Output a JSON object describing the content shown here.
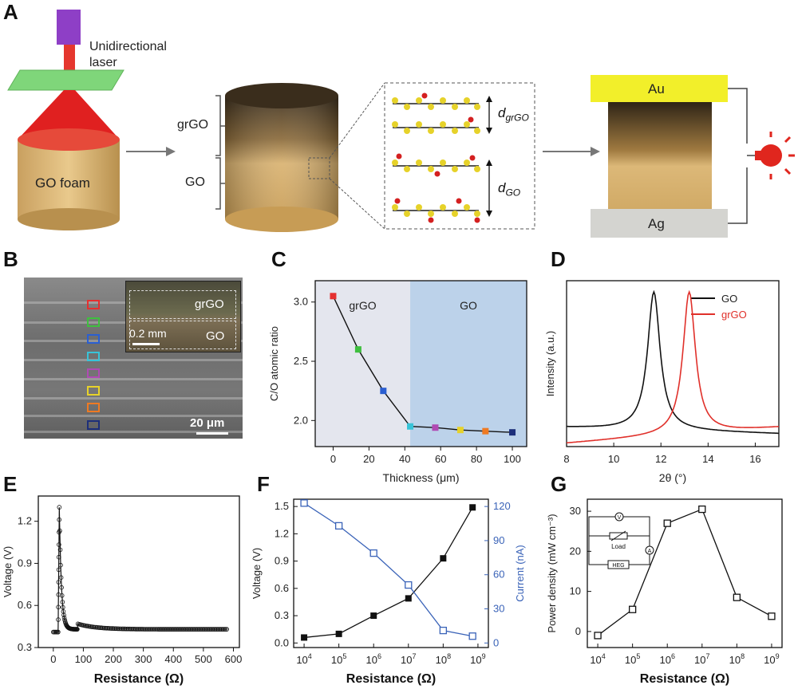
{
  "panel_labels": {
    "a": "A",
    "b": "B",
    "c": "C",
    "d": "D",
    "e": "E",
    "f": "F",
    "g": "G"
  },
  "panel_a": {
    "laser_label_1": "Unidirectional",
    "laser_label_2": "laser",
    "foam_label": "GO foam",
    "grgo_label": "grGO",
    "go_label": "GO",
    "d_grgo_main": "d",
    "d_grgo_sub": "grGO",
    "d_go_main": "d",
    "d_go_sub": "GO",
    "au_label": "Au",
    "ag_label": "Ag"
  },
  "panel_b": {
    "inset_grgo": "grGO",
    "inset_go": "GO",
    "inset_scale": "0.2 mm",
    "scale_bar": "20 μm",
    "marker_colors": [
      "#e53030",
      "#3fbf3f",
      "#2b5fd1",
      "#38c3d8",
      "#b04ab4",
      "#e7d22a",
      "#ef7a22",
      "#1d2f7a"
    ]
  },
  "chart_data": [
    {
      "id": "C",
      "type": "line",
      "xlabel": "Thickness (μm)",
      "ylabel": "C/O atomic ratio",
      "xlim": [
        -10,
        108
      ],
      "ylim": [
        1.78,
        3.18
      ],
      "xticks": [
        0,
        20,
        40,
        60,
        80,
        100
      ],
      "yticks": [
        2.0,
        2.5,
        3.0
      ],
      "ytick_labels": [
        "2.0",
        "2.5",
        "3.0"
      ],
      "region_labels": [
        "grGO",
        "GO"
      ],
      "region_boundary": 43,
      "x": [
        0,
        14,
        28,
        43,
        57,
        71,
        85,
        100
      ],
      "values": [
        3.05,
        2.6,
        2.25,
        1.95,
        1.94,
        1.92,
        1.91,
        1.9
      ],
      "point_colors": [
        "#e53030",
        "#3fbf3f",
        "#2b5fd1",
        "#38c3d8",
        "#b04ab4",
        "#e7d22a",
        "#ef7a22",
        "#1d2f7a"
      ]
    },
    {
      "id": "D",
      "type": "line",
      "xlabel": "2θ (°)",
      "ylabel": "Intensity (a.u.)",
      "xlim": [
        8,
        17
      ],
      "xticks": [
        8,
        10,
        12,
        14,
        16
      ],
      "series": [
        {
          "name": "GO",
          "color": "#111111",
          "peak": 11.7
        },
        {
          "name": "grGO",
          "color": "#e0302a",
          "peak": 13.2
        }
      ]
    },
    {
      "id": "E",
      "type": "scatter",
      "xlabel": "Resistance (Ω)",
      "ylabel": "Voltage (V)",
      "xlim": [
        -50,
        620
      ],
      "ylim": [
        0.3,
        1.38
      ],
      "xticks": [
        0,
        100,
        200,
        300,
        400,
        500,
        600
      ],
      "yticks": [
        0.3,
        0.6,
        0.9,
        1.2
      ],
      "peak": {
        "x": 20,
        "y": 1.3
      },
      "baseline": 0.43,
      "start": {
        "x": 0,
        "y": 0.41
      }
    },
    {
      "id": "F",
      "type": "line",
      "xlabel": "Resistance (Ω)",
      "ylabel": "Voltage (V)",
      "y2label": "Current (nA)",
      "log_x": true,
      "xlim_exp": [
        3.7,
        9.3
      ],
      "xtick_exps": [
        4,
        5,
        6,
        7,
        8,
        9
      ],
      "xtick_base": "10",
      "ylim": [
        -0.05,
        1.58
      ],
      "yticks": [
        0.0,
        0.3,
        0.6,
        0.9,
        1.2,
        1.5
      ],
      "ytick_labels": [
        "0.0",
        "0.3",
        "0.6",
        "0.9",
        "1.2",
        "1.5"
      ],
      "y2lim": [
        -4,
        126.4
      ],
      "y2ticks": [
        0,
        30,
        60,
        90,
        120
      ],
      "x": [
        "1e4",
        "1e5",
        "1e6",
        "1e7",
        "1e8",
        "7e8"
      ],
      "series": [
        {
          "name": "Voltage",
          "color": "#111111",
          "values": [
            0.06,
            0.1,
            0.3,
            0.49,
            0.93,
            1.49
          ]
        },
        {
          "name": "Current",
          "color": "#3a63b8",
          "values": [
            123,
            103,
            79,
            51,
            11,
            6
          ]
        }
      ]
    },
    {
      "id": "G",
      "type": "line",
      "xlabel": "Resistance (Ω)",
      "ylabel": "Power density (mW cm⁻³)",
      "log_x": true,
      "xlim_exp": [
        3.7,
        9.3
      ],
      "xtick_exps": [
        4,
        5,
        6,
        7,
        8,
        9
      ],
      "xtick_base": "10",
      "ylim": [
        -4,
        33
      ],
      "yticks": [
        0,
        10,
        20,
        30
      ],
      "x": [
        "1e4",
        "1e5",
        "1e6",
        "1e7",
        "1e8",
        "1e9"
      ],
      "values": [
        -1,
        5.5,
        27,
        30.5,
        8.5,
        3.8
      ],
      "inset_labels": {
        "v": "V",
        "a": "A",
        "load": "Load",
        "heg": "HEG"
      }
    }
  ]
}
